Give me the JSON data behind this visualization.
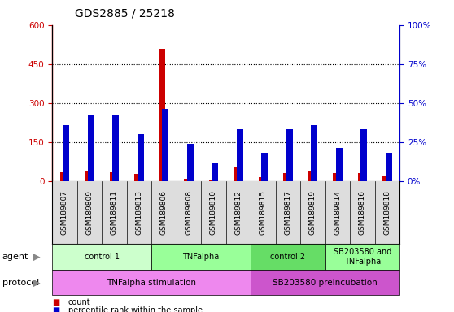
{
  "title": "GDS2885 / 25218",
  "samples": [
    "GSM189807",
    "GSM189809",
    "GSM189811",
    "GSM189813",
    "GSM189806",
    "GSM189808",
    "GSM189810",
    "GSM189812",
    "GSM189815",
    "GSM189817",
    "GSM189819",
    "GSM189814",
    "GSM189816",
    "GSM189818"
  ],
  "count_values": [
    32,
    38,
    33,
    28,
    510,
    7,
    6,
    52,
    14,
    30,
    36,
    30,
    30,
    18
  ],
  "percentile_values": [
    36,
    42,
    42,
    30,
    46,
    24,
    12,
    33,
    18,
    33,
    36,
    21,
    33,
    18
  ],
  "count_color": "#cc0000",
  "percentile_color": "#0000cc",
  "yticks_left": [
    0,
    150,
    300,
    450,
    600
  ],
  "ytick_labels_left": [
    "0",
    "150",
    "300",
    "450",
    "600"
  ],
  "ytick_labels_right": [
    "0%",
    "25%",
    "50%",
    "75%",
    "100%"
  ],
  "agent_groups": [
    {
      "label": "control 1",
      "start": 0,
      "end": 4,
      "color": "#ccffcc"
    },
    {
      "label": "TNFalpha",
      "start": 4,
      "end": 8,
      "color": "#99ff99"
    },
    {
      "label": "control 2",
      "start": 8,
      "end": 11,
      "color": "#66dd66"
    },
    {
      "label": "SB203580 and\nTNFalpha",
      "start": 11,
      "end": 14,
      "color": "#99ff99"
    }
  ],
  "protocol_groups": [
    {
      "label": "TNFalpha stimulation",
      "start": 0,
      "end": 8,
      "color": "#ee88ee"
    },
    {
      "label": "SB203580 preincubation",
      "start": 8,
      "end": 14,
      "color": "#cc55cc"
    }
  ],
  "legend_items": [
    {
      "label": "count",
      "color": "#cc0000"
    },
    {
      "label": "percentile rank within the sample",
      "color": "#0000cc"
    }
  ],
  "background_color": "#ffffff",
  "title_fontsize": 10,
  "tick_fontsize": 7.5,
  "bar_width": 0.25
}
